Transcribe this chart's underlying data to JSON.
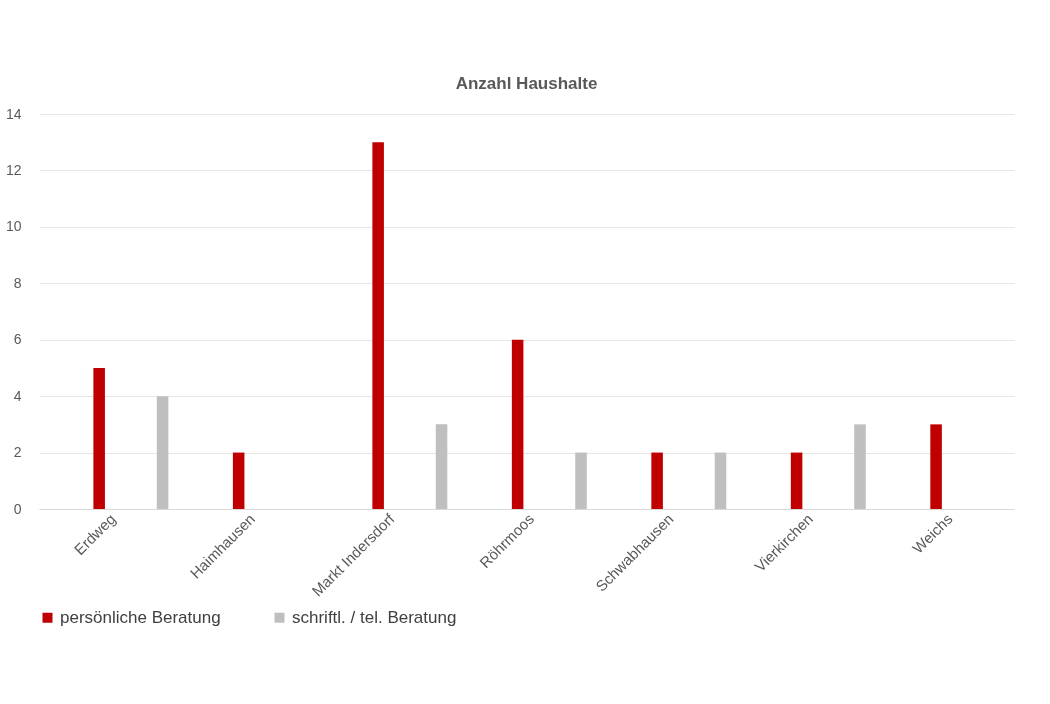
{
  "chart_data": {
    "type": "bar",
    "title": "Anzahl Haushalte",
    "categories": [
      "Erdweg",
      "Haimhausen",
      "Markt Indersdorf",
      "Röhrmoos",
      "Schwabhausen",
      "Vierkirchen",
      "Weichs"
    ],
    "series": [
      {
        "name": "persönliche Beratung",
        "color": "#c00000",
        "values": [
          5,
          2,
          13,
          6,
          2,
          2,
          3
        ]
      },
      {
        "name": "schriftl. / tel. Beratung",
        "color": "#bfbfbf",
        "values": [
          4,
          0,
          3,
          2,
          2,
          3,
          0
        ]
      }
    ],
    "ylim": [
      0,
      14
    ],
    "yticks": [
      0,
      2,
      4,
      6,
      8,
      10,
      12,
      14
    ],
    "grid": "y",
    "legend": "bottom"
  }
}
